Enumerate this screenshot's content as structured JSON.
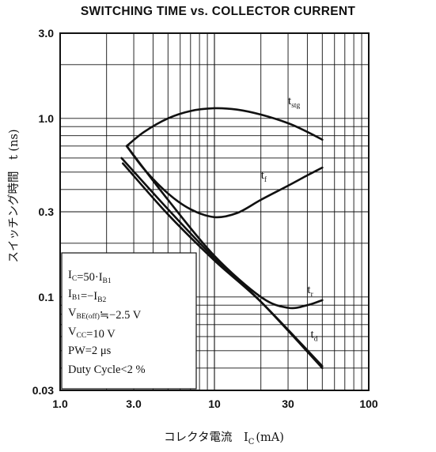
{
  "chart_data": {
    "type": "line",
    "title": "SWITCHING TIME vs. COLLECTOR CURRENT",
    "xlabel": "コレクタ電流",
    "xlabel_symbol": "I",
    "xlabel_symbol_sub": "C",
    "xlabel_unit": "(mA)",
    "ylabel": "スイッチング時間",
    "ylabel_symbol": "t",
    "ylabel_unit": "(ns)",
    "x_scale": "log",
    "y_scale": "log",
    "xlim": [
      1.0,
      100
    ],
    "ylim": [
      0.03,
      3.0
    ],
    "grid": true,
    "x_ticks": [
      {
        "value": 1.0,
        "label": "1.0"
      },
      {
        "value": 3.0,
        "label": "3.0"
      },
      {
        "value": 10,
        "label": "10"
      },
      {
        "value": 30,
        "label": "30"
      },
      {
        "value": 100,
        "label": "100"
      }
    ],
    "y_ticks": [
      {
        "value": 3.0,
        "label": "3.0"
      },
      {
        "value": 1.0,
        "label": "1.0"
      },
      {
        "value": 0.3,
        "label": "0.3"
      },
      {
        "value": 0.1,
        "label": "0.1"
      },
      {
        "value": 0.03,
        "label": "0.03"
      }
    ],
    "series": [
      {
        "name": "tstg",
        "label_main": "t",
        "label_sub": "stg",
        "label_at": [
          30,
          1.2
        ],
        "x": [
          2.7,
          3.5,
          5,
          7,
          10,
          14,
          20,
          30,
          40,
          50
        ],
        "y": [
          0.7,
          0.84,
          1.0,
          1.1,
          1.14,
          1.12,
          1.05,
          0.94,
          0.84,
          0.76
        ]
      },
      {
        "name": "tf",
        "label_main": "t",
        "label_sub": "f",
        "label_at": [
          20,
          0.46
        ],
        "x": [
          2.7,
          3.5,
          5,
          7,
          10,
          14,
          20,
          30,
          40,
          50
        ],
        "y": [
          0.7,
          0.52,
          0.38,
          0.31,
          0.28,
          0.295,
          0.35,
          0.42,
          0.48,
          0.53
        ]
      },
      {
        "name": "tr",
        "label_main": "t",
        "label_sub": "r",
        "label_at": [
          40,
          0.105
        ],
        "x": [
          2.7,
          5,
          10,
          20,
          30,
          40,
          50
        ],
        "y": [
          0.7,
          0.35,
          0.17,
          0.1,
          0.087,
          0.09,
          0.096
        ]
      },
      {
        "name": "td",
        "label_main": "t",
        "label_sub": "d",
        "label_at": [
          42,
          0.059
        ],
        "x": [
          2.5,
          5,
          10,
          20,
          50
        ],
        "y": [
          0.6,
          0.31,
          0.165,
          0.094,
          0.04
        ]
      },
      {
        "name": "",
        "x": [
          2.55,
          5,
          10,
          20,
          50
        ],
        "y": [
          0.56,
          0.29,
          0.16,
          0.094,
          0.041
        ]
      }
    ],
    "annotation_box": [
      {
        "main": "I",
        "sub": "C",
        "rest": "=50·I",
        "sub2": "B1",
        "tail": ""
      },
      {
        "main": "I",
        "sub": "B1",
        "rest": "=−I",
        "sub2": "B2",
        "tail": ""
      },
      {
        "main": "V",
        "sub": "BE(off)",
        "rest": "≒−2.5",
        "sub2": "",
        "tail": " V"
      },
      {
        "main": "V",
        "sub": "CC",
        "rest": "=10",
        "sub2": "",
        "tail": " V"
      },
      {
        "main": "PW=2",
        "sub": "",
        "rest": " μs",
        "sub2": "",
        "tail": ""
      },
      {
        "main": "Duty Cycle<2",
        "sub": "",
        "rest": " %",
        "sub2": "",
        "tail": ""
      }
    ]
  }
}
